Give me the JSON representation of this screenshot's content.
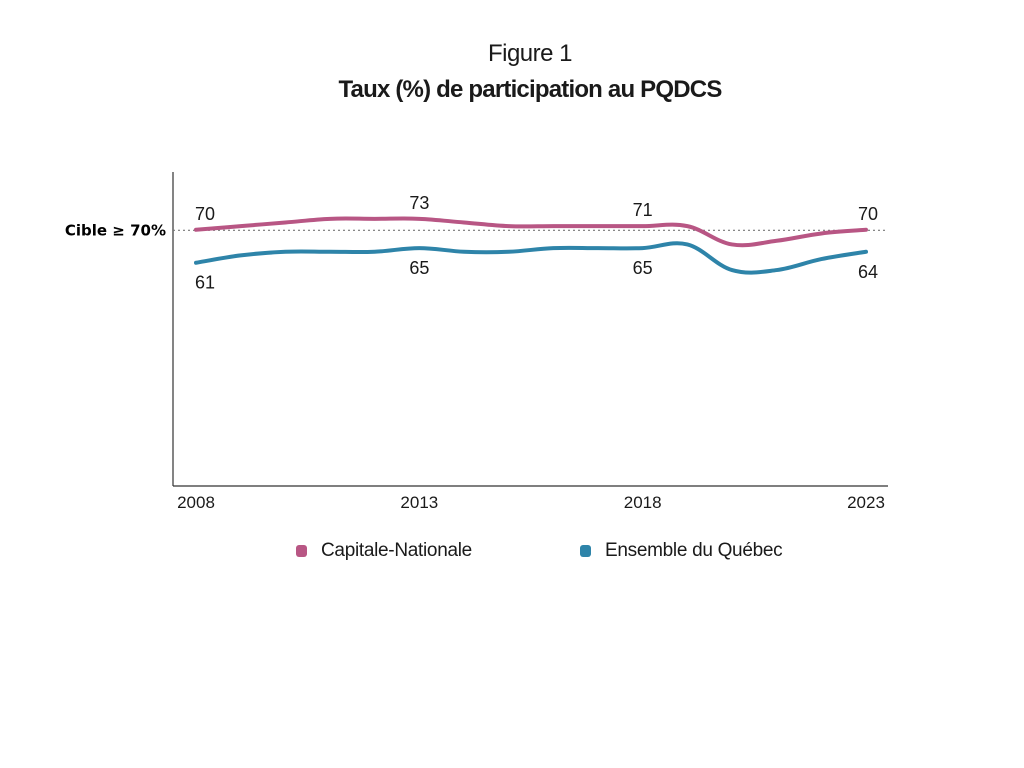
{
  "figure_label": "Figure 1",
  "title": "Taux (%) de participation au PQDCS",
  "chart_data": {
    "type": "line",
    "title": "Taux (%) de participation au PQDCS",
    "xlabel": "",
    "ylabel": "",
    "x": [
      2008,
      2009,
      2010,
      2011,
      2012,
      2013,
      2014,
      2015,
      2016,
      2017,
      2018,
      2019,
      2020,
      2021,
      2022,
      2023
    ],
    "x_ticks": [
      "2008",
      "2013",
      "2018",
      "2023"
    ],
    "ylim": [
      0,
      80
    ],
    "series": [
      {
        "name": "Capitale-Nationale",
        "color": "#b85684",
        "values": [
          70,
          71,
          72,
          73,
          73,
          73,
          72,
          71,
          71,
          71,
          71,
          71,
          66,
          67,
          69,
          70
        ],
        "labels": [
          {
            "x": 2008,
            "text": "70",
            "position": "above"
          },
          {
            "x": 2013,
            "text": "73",
            "position": "above"
          },
          {
            "x": 2018,
            "text": "71",
            "position": "above"
          },
          {
            "x": 2023,
            "text": "70",
            "position": "above"
          }
        ]
      },
      {
        "name": "Ensemble du Québec",
        "color": "#2e84a9",
        "values": [
          61,
          63,
          64,
          64,
          64,
          65,
          64,
          64,
          65,
          65,
          65,
          66,
          59,
          59,
          62,
          64
        ],
        "labels": [
          {
            "x": 2008,
            "text": "61",
            "position": "below"
          },
          {
            "x": 2013,
            "text": "65",
            "position": "below"
          },
          {
            "x": 2018,
            "text": "65",
            "position": "below"
          },
          {
            "x": 2023,
            "text": "64",
            "position": "below"
          }
        ]
      }
    ],
    "target": {
      "value": 70,
      "label": "Cible ≥ 70%",
      "style": "dotted"
    },
    "grid": false,
    "legend": "bottom"
  }
}
